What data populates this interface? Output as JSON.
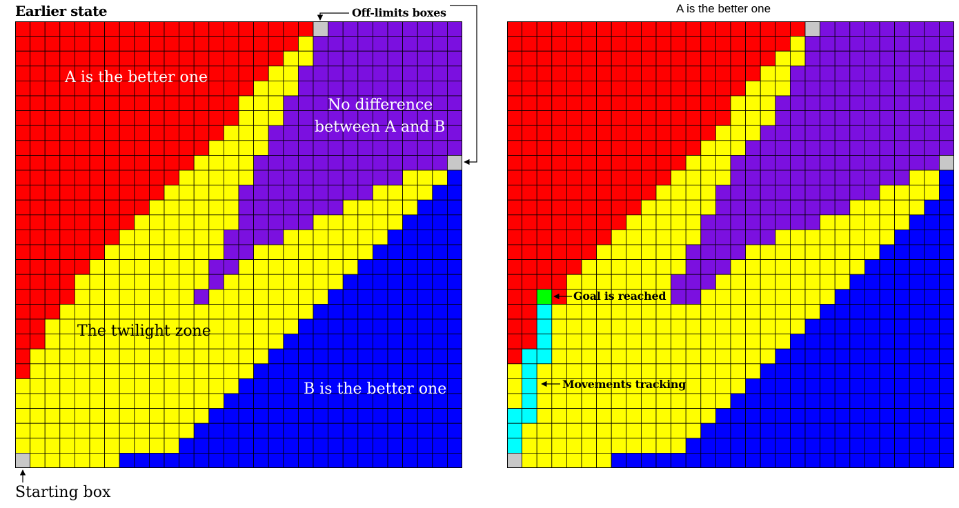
{
  "left_panel": {
    "title": "Earlier state",
    "labels": {
      "a_better": "A is the better one",
      "no_difference_line1": "No difference",
      "no_difference_line2": "between A and B",
      "twilight": "The twilight zone",
      "b_better": "B is the better one",
      "off_limits": "Off-limits boxes",
      "starting_box": "Starting box"
    }
  },
  "right_panel": {
    "title": "A is the better one",
    "labels": {
      "goal": "Goal is reached",
      "tracking": "Movements tracking"
    }
  },
  "grid": {
    "cols": 30,
    "rows": 30
  },
  "colors": {
    "red": "#ff0000",
    "yellow": "#ffff00",
    "purple": "#7b10e0",
    "blue": "#0000ff",
    "gray": "#c8c8c8",
    "cyan": "#00ffff",
    "green": "#00ff00",
    "gridline": "#000000"
  }
}
